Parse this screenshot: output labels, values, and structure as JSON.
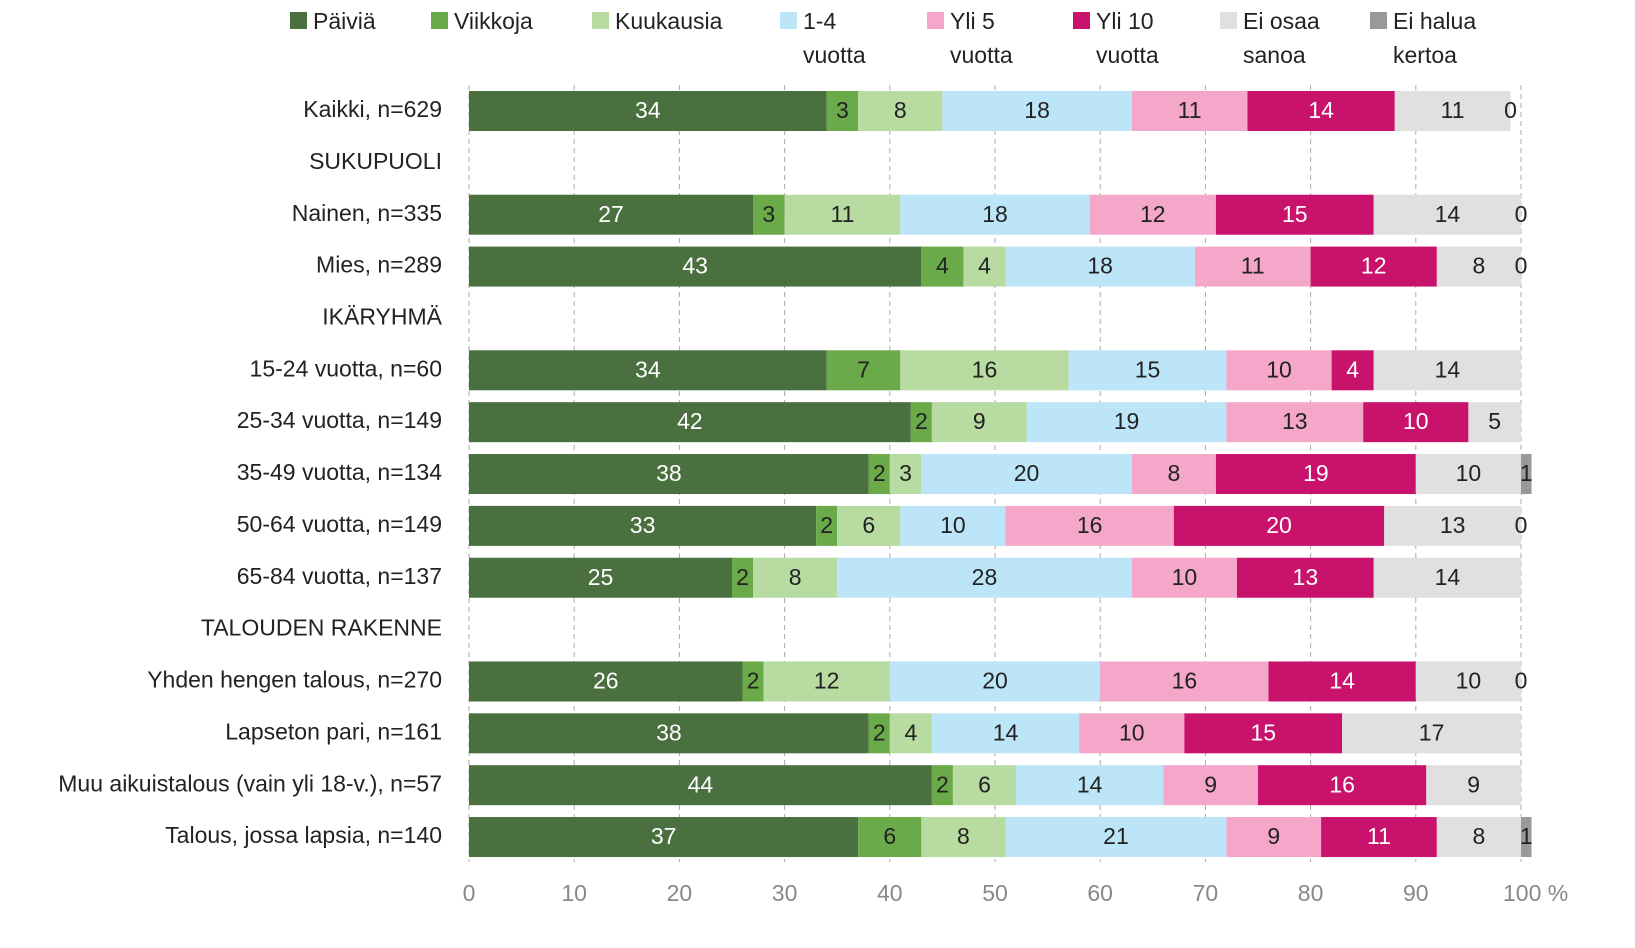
{
  "chart_data": {
    "type": "stacked-bar",
    "categories": [
      "Kaikki, n=629",
      "SUKUPUOLI",
      "Nainen, n=335",
      "Mies, n=289",
      "IKÄRYHMÄ",
      "15-24 vuotta, n=60",
      "25-34 vuotta, n=149",
      "35-49 vuotta, n=134",
      "50-64 vuotta, n=149",
      "65-84 vuotta, n=137",
      "TALOUDEN RAKENNE",
      "Yhden hengen talous, n=270",
      "Lapseton pari, n=161",
      "Muu aikuistalous (vain yli 18-v.), n=57",
      "Talous, jossa lapsia, n=140"
    ],
    "series": [
      {
        "name": "Päiviä",
        "color": "#4a7040",
        "values": [
          34,
          null,
          27,
          43,
          null,
          34,
          42,
          38,
          33,
          25,
          null,
          26,
          38,
          44,
          37
        ]
      },
      {
        "name": "Viikkoja",
        "color": "#6aaa48",
        "values": [
          3,
          null,
          3,
          4,
          null,
          7,
          2,
          2,
          2,
          2,
          null,
          2,
          2,
          2,
          6
        ]
      },
      {
        "name": "Kuukausia",
        "color": "#b7dba0",
        "values": [
          8,
          null,
          11,
          4,
          null,
          16,
          9,
          3,
          6,
          8,
          null,
          12,
          4,
          6,
          8
        ]
      },
      {
        "name": "1-4 vuotta",
        "color": "#bde5f8",
        "values": [
          18,
          null,
          18,
          18,
          null,
          15,
          19,
          20,
          10,
          28,
          null,
          20,
          14,
          14,
          21
        ]
      },
      {
        "name": "Yli 5 vuotta",
        "color": "#f4a7c9",
        "values": [
          11,
          null,
          12,
          11,
          null,
          10,
          13,
          8,
          16,
          10,
          null,
          16,
          10,
          9,
          9
        ]
      },
      {
        "name": "Yli 10 vuotta",
        "color": "#c8126b",
        "values": [
          14,
          null,
          15,
          12,
          null,
          4,
          10,
          19,
          20,
          13,
          null,
          14,
          15,
          16,
          11
        ]
      },
      {
        "name": "Ei osaa sanoa",
        "color": "#e0e0e0",
        "values": [
          11,
          null,
          14,
          8,
          null,
          14,
          5,
          10,
          13,
          14,
          null,
          10,
          17,
          9,
          8
        ]
      },
      {
        "name": "Ei halua kertoa",
        "color": "#999999",
        "values": [
          0,
          null,
          0,
          0,
          null,
          null,
          null,
          1,
          0,
          null,
          null,
          0,
          null,
          null,
          1
        ]
      }
    ],
    "xlim": [
      0,
      100
    ],
    "xticks": [
      0,
      10,
      20,
      30,
      40,
      50,
      60,
      70,
      80,
      90,
      {
        "value": 100,
        "label": "100 %"
      }
    ],
    "grid": true
  }
}
